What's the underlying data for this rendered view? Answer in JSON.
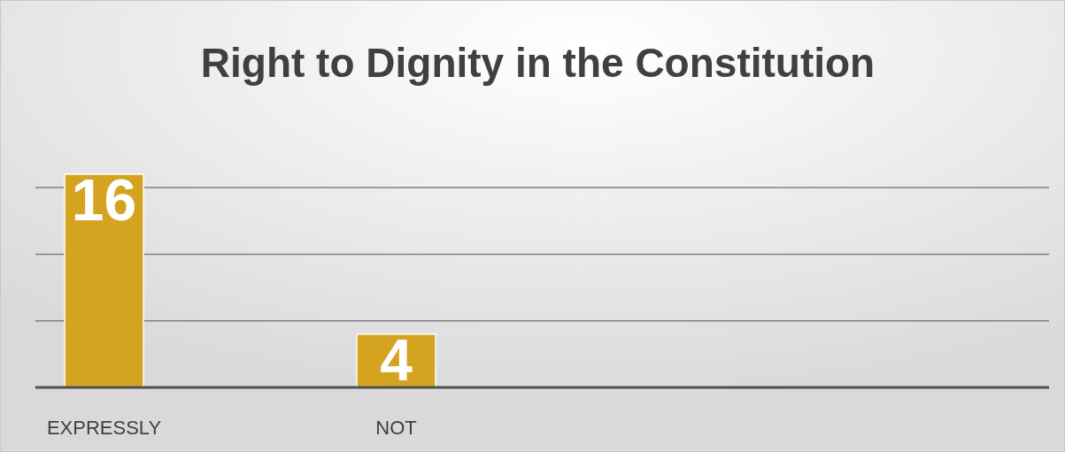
{
  "chart_data": {
    "type": "bar",
    "title": "Right to Dignity in the Constitution",
    "categories": [
      "EXPRESSLY",
      "NOT",
      null,
      null
    ],
    "values": [
      16,
      4,
      null,
      null
    ],
    "color": "#d4a421",
    "ylim": [
      0,
      16
    ],
    "yticks": [
      {
        "value": 5,
        "label": null
      },
      {
        "value": 10,
        "label": null
      },
      {
        "value": 15,
        "label": null
      }
    ],
    "grid": "y",
    "tick_labels": "x",
    "data_labels": true
  }
}
